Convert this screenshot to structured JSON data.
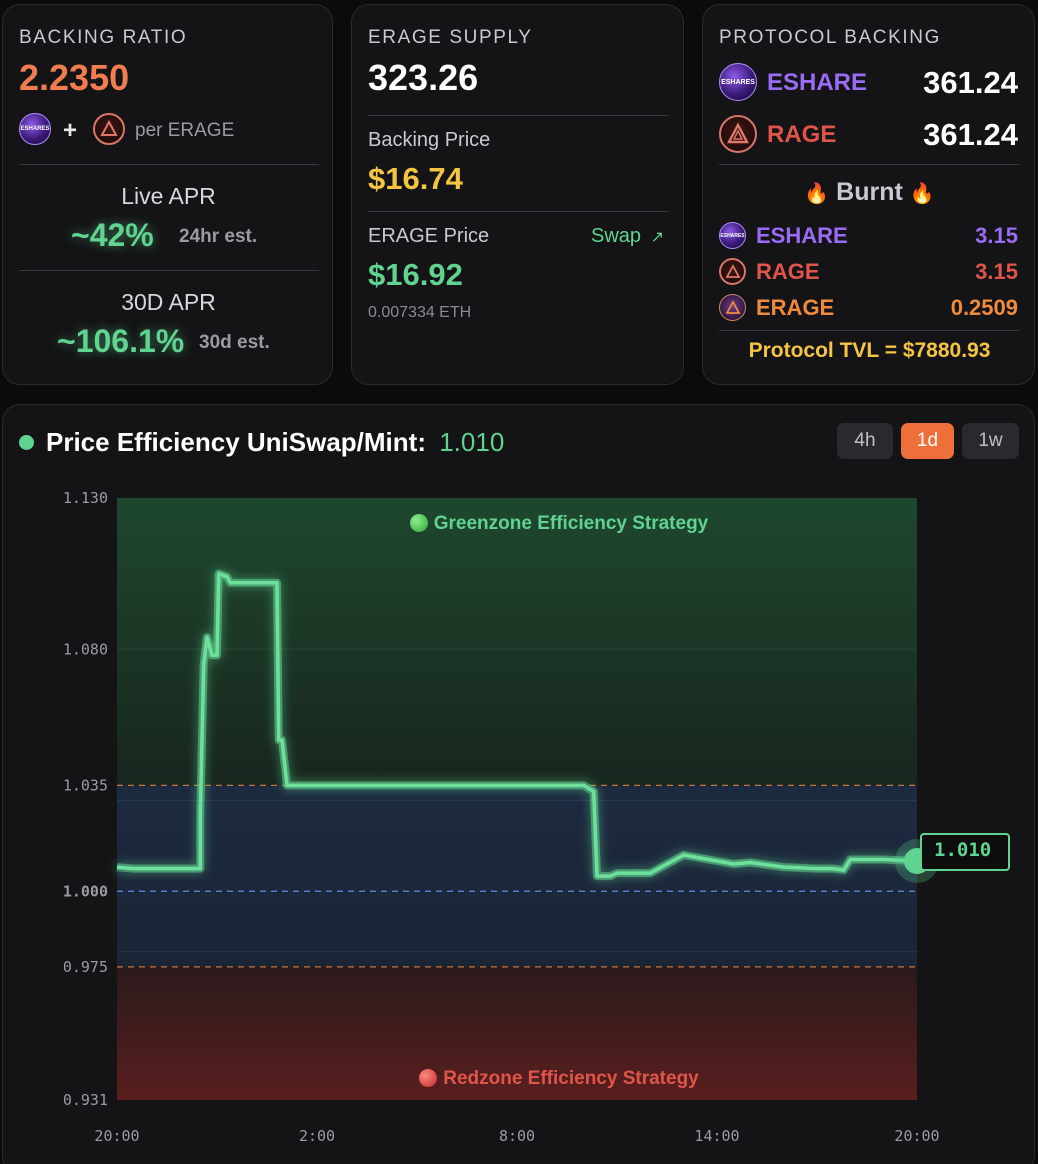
{
  "backing": {
    "title": "BACKING RATIO",
    "ratio": "2.2350",
    "plus": "+",
    "per_label": "per ERAGE",
    "live_apr_title": "Live APR",
    "live_apr_value": "~42%",
    "live_apr_note": "24hr est.",
    "apr30_title": "30D APR",
    "apr30_value": "~106.1%",
    "apr30_note": "30d est."
  },
  "supply": {
    "title": "ERAGE SUPPLY",
    "value": "323.26",
    "backing_price_label": "Backing Price",
    "backing_price_value": "$16.74",
    "erage_price_label": "ERAGE Price",
    "swap_label": "Swap",
    "swap_arrow": "↗",
    "erage_price_value": "$16.92",
    "erage_price_eth": "0.007334 ETH"
  },
  "protocol": {
    "title": "PROTOCOL BACKING",
    "holdings": [
      {
        "token": "ESHARE",
        "amount": "361.24",
        "color": "#9a6cf5",
        "icon": "eshare-icon"
      },
      {
        "token": "RAGE",
        "amount": "361.24",
        "color": "#e0554a",
        "icon": "rage-icon"
      }
    ],
    "burnt_label": "Burnt",
    "burnt_emoji": "🔥",
    "burnt": [
      {
        "token": "ESHARE",
        "amount": "3.15",
        "color": "#9a6cf5",
        "icon": "eshare-icon"
      },
      {
        "token": "RAGE",
        "amount": "3.15",
        "color": "#e0554a",
        "icon": "rage-icon"
      },
      {
        "token": "ERAGE",
        "amount": "0.2509",
        "color": "#f08a3c",
        "icon": "erage-icon"
      }
    ],
    "tvl": "Protocol TVL = $7880.93"
  },
  "icons": {
    "eshare_text": "ESHARES"
  },
  "chart": {
    "title": "Price Efficiency UniSwap/Mint:",
    "title_value": "1.010",
    "timeframes": [
      "4h",
      "1d",
      "1w"
    ],
    "active_timeframe": "1d",
    "greenzone_label": "Greenzone Efficiency Strategy",
    "redzone_label": "Redzone Efficiency Strategy",
    "current_label": "1.010",
    "colors": {
      "line": "#5fd38f",
      "green_zone": "#1f4a30",
      "blue_zone": "#1c2a40",
      "red_zone": "#4a1c1c",
      "accent": "#ef6f3a"
    }
  },
  "chart_data": {
    "type": "line",
    "title": "Price Efficiency UniSwap/Mint:",
    "xlabel": "",
    "ylabel": "",
    "ylim": [
      0.931,
      1.13
    ],
    "y_ticks": [
      "1.130",
      "1.080",
      "1.035",
      "1.000",
      "0.975",
      "0.931"
    ],
    "x_ticks": [
      "20:00",
      "2:00",
      "8:00",
      "14:00",
      "20:00"
    ],
    "x_range_hours": [
      0,
      24
    ],
    "reference_lines": [
      {
        "value": 1.035,
        "label": "1.035",
        "style": "dashed",
        "color": "#c8743a"
      },
      {
        "value": 1.0,
        "label": "1.000",
        "style": "dashed",
        "color": "#5b8fe0"
      },
      {
        "value": 0.975,
        "label": "0.975",
        "style": "dashed",
        "color": "#c8743a"
      }
    ],
    "grid": true,
    "series": [
      {
        "x": [
          0,
          0.5,
          1.5,
          2.5,
          2.5,
          2.6,
          2.7,
          2.85,
          3.0,
          3.05,
          3.3,
          3.4,
          3.6,
          4.0,
          4.8,
          4.85,
          4.95,
          5.1,
          8.0,
          12.0,
          14.0,
          14.3,
          14.4,
          14.8,
          15.0,
          15.5,
          16.0,
          17.0,
          17.5,
          18.0,
          18.5,
          19.0,
          20.0,
          21.0,
          21.5,
          21.8,
          22.0,
          23.0,
          24.0
        ],
        "y": [
          1.008,
          1.0075,
          1.0075,
          1.0075,
          1.0255,
          1.075,
          1.084,
          1.078,
          1.078,
          1.105,
          1.104,
          1.102,
          1.102,
          1.102,
          1.102,
          1.05,
          1.05,
          1.035,
          1.035,
          1.035,
          1.035,
          1.033,
          1.005,
          1.005,
          1.006,
          1.006,
          1.006,
          1.012,
          1.011,
          1.01,
          1.009,
          1.0095,
          1.008,
          1.0075,
          1.0075,
          1.007,
          1.0105,
          1.0105,
          1.01
        ]
      }
    ]
  }
}
